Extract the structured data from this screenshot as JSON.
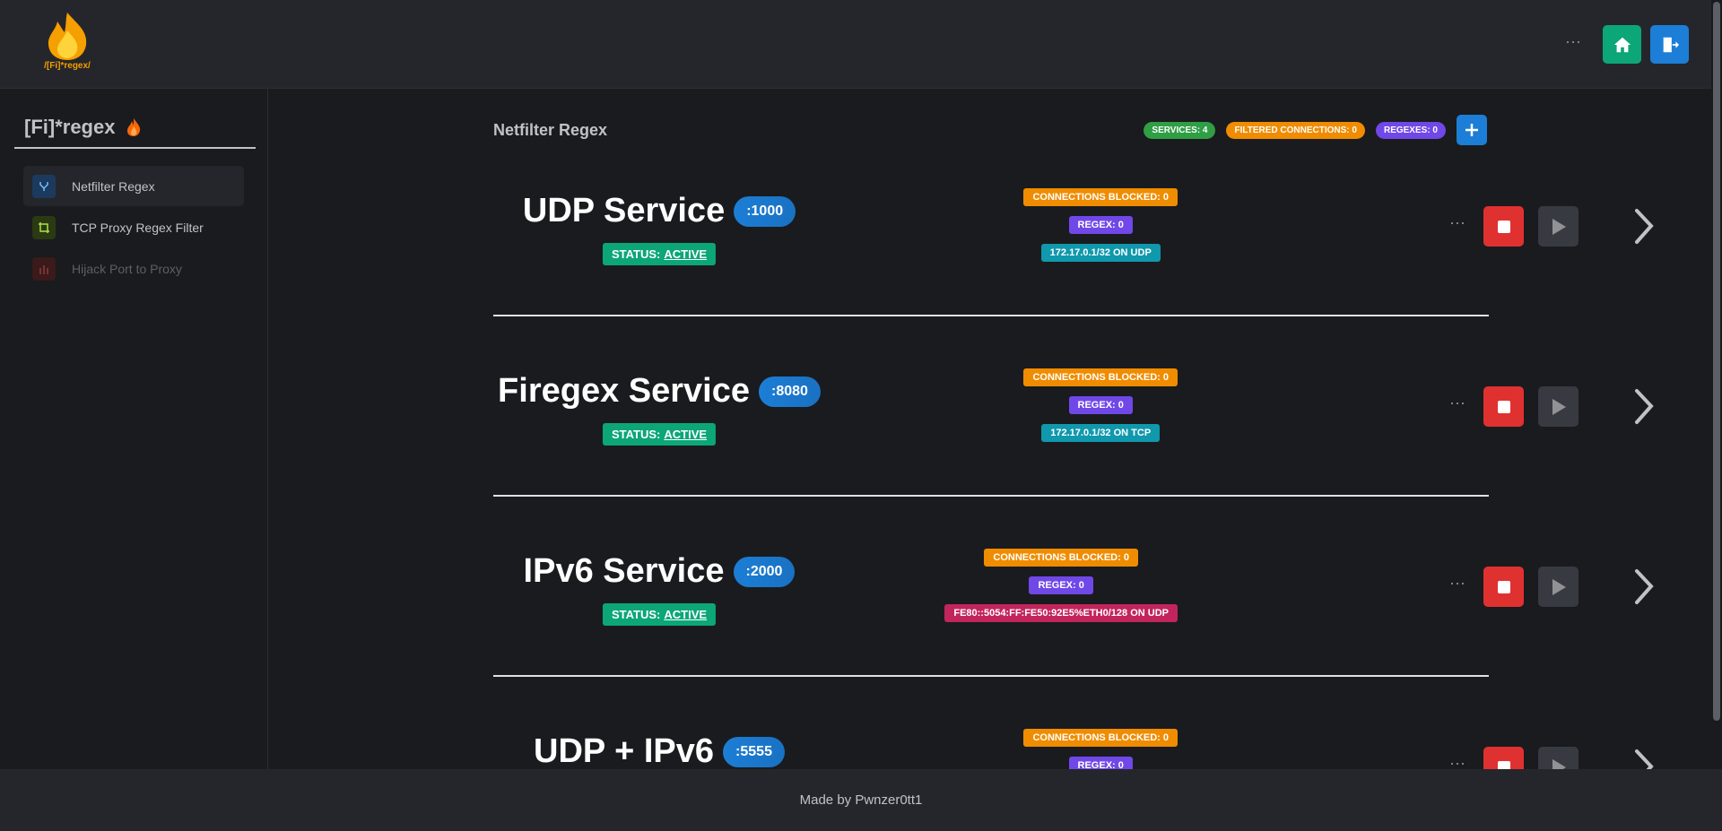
{
  "header": {
    "logo_text": "/[Fi]*regex/",
    "menu": "···"
  },
  "sidebar": {
    "title": "[Fi]*regex",
    "nav": [
      {
        "label": "Netfilter Regex"
      },
      {
        "label": "TCP Proxy Regex Filter"
      },
      {
        "label": "Hijack Port to Proxy"
      }
    ]
  },
  "main": {
    "title": "Netfilter Regex",
    "badges": [
      "SERVICES: 4",
      "FILTERED CONNECTIONS: 0",
      "REGEXES: 0"
    ],
    "services": [
      {
        "name": "UDP Service",
        "port": ":1000",
        "status_label": "STATUS:",
        "status": "ACTIVE",
        "blocked": "CONNECTIONS BLOCKED: 0",
        "regex": "REGEX: 0",
        "address": "172.17.0.1/32 ON UDP",
        "menu": "···"
      },
      {
        "name": "Firegex Service",
        "port": ":8080",
        "status_label": "STATUS:",
        "status": "ACTIVE",
        "blocked": "CONNECTIONS BLOCKED: 0",
        "regex": "REGEX: 0",
        "address": "172.17.0.1/32 ON TCP",
        "menu": "···"
      },
      {
        "name": "IPv6 Service",
        "port": ":2000",
        "status_label": "STATUS:",
        "status": "ACTIVE",
        "blocked": "CONNECTIONS BLOCKED: 0",
        "regex": "REGEX: 0",
        "address": "FE80::5054:FF:FE50:92E5%ETH0/128 ON UDP",
        "menu": "···"
      },
      {
        "name": "UDP + IPv6",
        "port": ":5555",
        "blocked": "CONNECTIONS BLOCKED: 0",
        "regex": "REGEX: 0",
        "menu": "···"
      }
    ]
  },
  "footer": {
    "text": "Made by Pwnzer0tt1"
  }
}
